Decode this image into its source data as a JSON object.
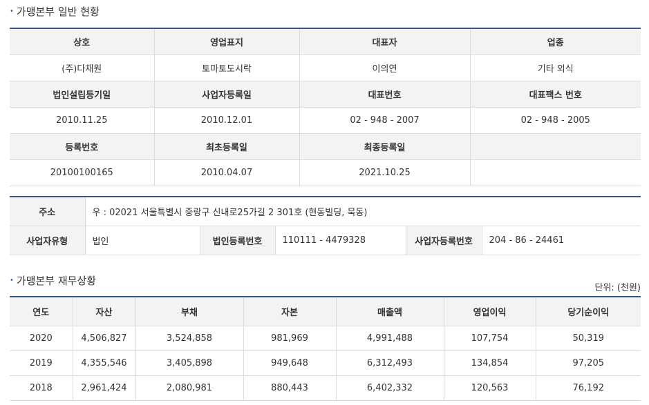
{
  "general": {
    "title": "가맹본부 일반 현황",
    "row1_headers": [
      "상호",
      "영업표지",
      "대표자",
      "업종"
    ],
    "row1_values": [
      "(주)다채원",
      "토마토도시락",
      "이의연",
      "기타 외식"
    ],
    "row2_headers": [
      "법인설립등기일",
      "사업자등록일",
      "대표번호",
      "대표팩스 번호"
    ],
    "row2_values": [
      "2010.11.25",
      "2010.12.01",
      "02 - 948 - 2007",
      "02 - 948 - 2005"
    ],
    "row3_headers": [
      "등록번호",
      "최초등록일",
      "최종등록일",
      ""
    ],
    "row3_values": [
      "20100100165",
      "2010.04.07",
      "2021.10.25",
      ""
    ]
  },
  "address": {
    "address_label": "주소",
    "address_value": "우 : 02021 서울특별시 중랑구 신내로25가길 2 301호 (현동빌딩, 묵동)",
    "biz_type_label": "사업자유형",
    "biz_type_value": "법인",
    "corp_reg_label": "법인등록번호",
    "corp_reg_value": "110111 - 4479328",
    "biz_reg_label": "사업자등록번호",
    "biz_reg_value": "204 - 86 - 24461"
  },
  "finance": {
    "title": "가맹본부 재무상황",
    "unit": "단위: (천원)",
    "headers": [
      "연도",
      "자산",
      "부채",
      "자본",
      "매출액",
      "영업이익",
      "당기순이익"
    ],
    "rows": [
      [
        "2020",
        "4,506,827",
        "3,524,858",
        "981,969",
        "4,991,488",
        "107,754",
        "50,319"
      ],
      [
        "2019",
        "4,355,546",
        "3,405,898",
        "949,648",
        "6,312,493",
        "134,854",
        "97,205"
      ],
      [
        "2018",
        "2,961,424",
        "2,080,981",
        "880,443",
        "6,402,332",
        "120,563",
        "76,192"
      ]
    ]
  },
  "colors": {
    "accent": "#34568b",
    "header_bg": "#f3f3f3",
    "border": "#dcdcdc"
  }
}
